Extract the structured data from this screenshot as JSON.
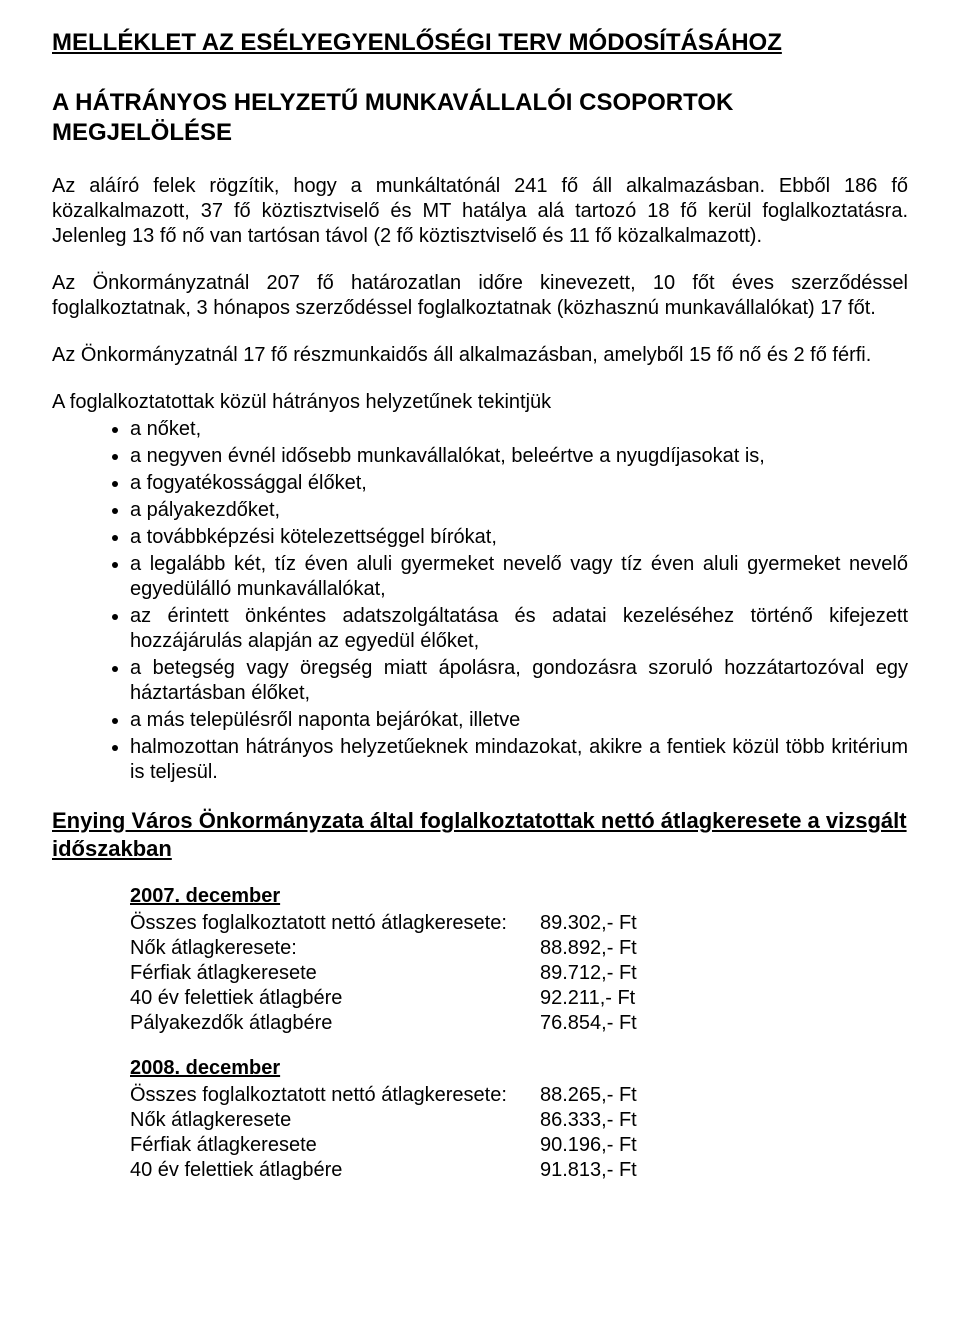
{
  "title": "MELLÉKLET AZ ESÉLYEGYENLŐSÉGI TERV MÓDOSÍTÁSÁHOZ",
  "subtitle": "A HÁTRÁNYOS HELYZETŰ MUNKAVÁLLALÓI CSOPORTOK MEGJELÖLÉSE",
  "para1": "Az aláíró felek rögzítik, hogy a munkáltatónál 241 fő áll alkalmazásban. Ebből 186 fő közalkalmazott, 37 fő köztisztviselő és MT hatálya alá tartozó 18 fő kerül foglalkoztatásra. Jelenleg 13 fő nő van tartósan távol (2 fő köztisztviselő és 11 fő közalkalmazott).",
  "para2": "Az Önkormányzatnál 207 fő határozatlan időre kinevezett, 10 főt éves szerződéssel foglalkoztatnak, 3 hónapos szerződéssel foglalkoztatnak (közhasznú munkavállalókat) 17 főt.",
  "para3": "Az Önkormányzatnál 17 fő részmunkaidős áll alkalmazásban, amelyből 15 fő nő és 2 fő férfi.",
  "list_intro": "A foglalkoztatottak közül hátrányos helyzetűnek tekintjük",
  "bullets": [
    "a nőket,",
    "a negyven évnél idősebb munkavállalókat, beleértve a nyugdíjasokat is,",
    "a fogyatékossággal élőket,",
    "a pályakezdőket,",
    "a továbbképzési kötelezettséggel bírókat,",
    "a legalább két, tíz éven aluli gyermeket nevelő vagy tíz éven aluli gyermeket nevelő egyedülálló munkavállalókat,",
    "az érintett önkéntes adatszolgáltatása és adatai kezeléséhez történő kifejezett hozzájárulás alapján az egyedül élőket,",
    "a betegség vagy öregség miatt ápolásra, gondozásra szoruló hozzátartozóval egy háztartásban élőket,",
    "a más településről naponta bejárókat, illetve",
    "halmozottan hátrányos helyzetűeknek mindazokat, akikre a fentiek közül több kritérium is teljesül."
  ],
  "section_heading": "Enying Város Önkormányzata által foglalkoztatottak nettó átlagkeresete a vizsgált időszakban",
  "periods": [
    {
      "label": "2007. december",
      "rows": [
        {
          "label": "Összes foglalkoztatott nettó átlagkeresete:",
          "value": "89.302,- Ft"
        },
        {
          "label": "Nők átlagkeresete:",
          "value": "88.892,- Ft"
        },
        {
          "label": "Férfiak átlagkeresete",
          "value": "89.712,- Ft"
        },
        {
          "label": "40 év felettiek átlagbére",
          "value": "92.211,- Ft"
        },
        {
          "label": "Pályakezdők átlagbére",
          "value": "76.854,- Ft"
        }
      ]
    },
    {
      "label": "2008. december",
      "rows": [
        {
          "label": "Összes foglalkoztatott nettó átlagkeresete:",
          "value": "88.265,- Ft"
        },
        {
          "label": "Nők átlagkeresete",
          "value": "86.333,- Ft"
        },
        {
          "label": "Férfiak átlagkeresete",
          "value": "90.196,- Ft"
        },
        {
          "label": "40 év felettiek átlagbére",
          "value": "91.813,- Ft"
        }
      ]
    }
  ]
}
